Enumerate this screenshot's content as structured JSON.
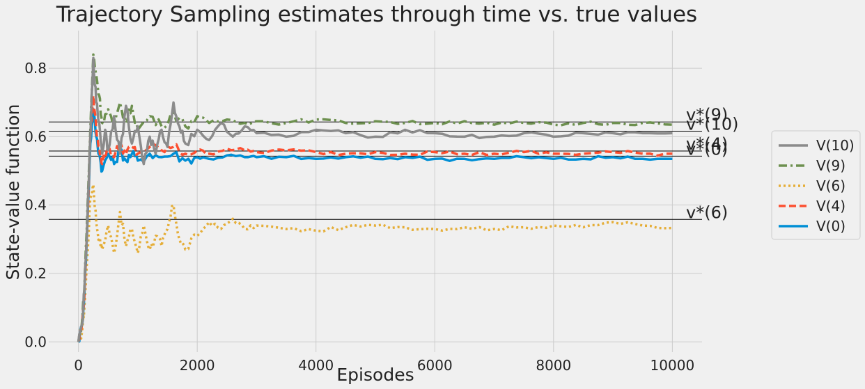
{
  "chart_data": {
    "type": "line",
    "title": "Trajectory Sampling estimates through time vs. true values",
    "xlabel": "Episodes",
    "ylabel": "State-value function",
    "xlim": [
      -500,
      10500
    ],
    "ylim": [
      -0.03,
      0.91
    ],
    "xticks": [
      0,
      2000,
      4000,
      6000,
      8000,
      10000
    ],
    "yticks": [
      0.0,
      0.2,
      0.4,
      0.6,
      0.8
    ],
    "grid": true,
    "legend_position": "right",
    "true_values": [
      {
        "label": "v*(9)",
        "value": 0.643
      },
      {
        "label": "v*(10)",
        "value": 0.616
      },
      {
        "label": "v*(4)",
        "value": 0.558
      },
      {
        "label": "v*(0)",
        "value": 0.543
      },
      {
        "label": "v*(6)",
        "value": 0.358
      }
    ],
    "series": [
      {
        "name": "V(10)",
        "color": "#8b8b8b",
        "dash": "solid",
        "final": 0.61,
        "points": [
          [
            0,
            0
          ],
          [
            60,
            0.05
          ],
          [
            100,
            0.15
          ],
          [
            150,
            0.35
          ],
          [
            200,
            0.6
          ],
          [
            250,
            0.83
          ],
          [
            300,
            0.7
          ],
          [
            350,
            0.64
          ],
          [
            400,
            0.55
          ],
          [
            450,
            0.62
          ],
          [
            500,
            0.56
          ],
          [
            600,
            0.66
          ],
          [
            700,
            0.55
          ],
          [
            800,
            0.69
          ],
          [
            900,
            0.58
          ],
          [
            1000,
            0.63
          ],
          [
            1100,
            0.52
          ],
          [
            1200,
            0.6
          ],
          [
            1300,
            0.55
          ],
          [
            1400,
            0.62
          ],
          [
            1500,
            0.57
          ],
          [
            1600,
            0.7
          ],
          [
            1700,
            0.63
          ],
          [
            1800,
            0.58
          ],
          [
            2000,
            0.62
          ],
          [
            2200,
            0.59
          ],
          [
            2400,
            0.64
          ],
          [
            2600,
            0.6
          ],
          [
            2800,
            0.63
          ],
          [
            3000,
            0.61
          ],
          [
            3500,
            0.6
          ],
          [
            4000,
            0.62
          ],
          [
            4500,
            0.61
          ],
          [
            5000,
            0.6
          ],
          [
            5500,
            0.62
          ],
          [
            6000,
            0.61
          ],
          [
            6500,
            0.6
          ],
          [
            7000,
            0.6
          ],
          [
            7500,
            0.61
          ],
          [
            8000,
            0.6
          ],
          [
            8500,
            0.61
          ],
          [
            9000,
            0.61
          ],
          [
            9500,
            0.61
          ],
          [
            10000,
            0.61
          ]
        ]
      },
      {
        "name": "V(9)",
        "color": "#6d904f",
        "dash": "dashdot",
        "final": 0.635,
        "points": [
          [
            0,
            0
          ],
          [
            60,
            0.06
          ],
          [
            100,
            0.16
          ],
          [
            150,
            0.38
          ],
          [
            200,
            0.62
          ],
          [
            250,
            0.84
          ],
          [
            300,
            0.78
          ],
          [
            350,
            0.72
          ],
          [
            400,
            0.64
          ],
          [
            500,
            0.68
          ],
          [
            600,
            0.62
          ],
          [
            700,
            0.7
          ],
          [
            800,
            0.64
          ],
          [
            900,
            0.69
          ],
          [
            1000,
            0.62
          ],
          [
            1200,
            0.66
          ],
          [
            1400,
            0.63
          ],
          [
            1600,
            0.67
          ],
          [
            1800,
            0.63
          ],
          [
            2000,
            0.66
          ],
          [
            2200,
            0.64
          ],
          [
            2500,
            0.65
          ],
          [
            2800,
            0.64
          ],
          [
            3000,
            0.645
          ],
          [
            3500,
            0.64
          ],
          [
            4000,
            0.65
          ],
          [
            4500,
            0.64
          ],
          [
            5000,
            0.645
          ],
          [
            5500,
            0.64
          ],
          [
            6000,
            0.64
          ],
          [
            6500,
            0.645
          ],
          [
            7000,
            0.635
          ],
          [
            7500,
            0.64
          ],
          [
            8000,
            0.635
          ],
          [
            8500,
            0.64
          ],
          [
            9000,
            0.64
          ],
          [
            9500,
            0.64
          ],
          [
            10000,
            0.635
          ]
        ]
      },
      {
        "name": "V(6)",
        "color": "#e5ae38",
        "dash": "dotted",
        "final": 0.333,
        "points": [
          [
            0,
            0
          ],
          [
            60,
            0.03
          ],
          [
            100,
            0.1
          ],
          [
            150,
            0.25
          ],
          [
            200,
            0.42
          ],
          [
            250,
            0.46
          ],
          [
            300,
            0.35
          ],
          [
            350,
            0.3
          ],
          [
            400,
            0.27
          ],
          [
            500,
            0.34
          ],
          [
            600,
            0.26
          ],
          [
            700,
            0.38
          ],
          [
            800,
            0.28
          ],
          [
            900,
            0.33
          ],
          [
            1000,
            0.26
          ],
          [
            1100,
            0.34
          ],
          [
            1200,
            0.27
          ],
          [
            1300,
            0.31
          ],
          [
            1400,
            0.28
          ],
          [
            1500,
            0.33
          ],
          [
            1600,
            0.4
          ],
          [
            1700,
            0.3
          ],
          [
            1800,
            0.27
          ],
          [
            2000,
            0.31
          ],
          [
            2200,
            0.35
          ],
          [
            2400,
            0.33
          ],
          [
            2600,
            0.36
          ],
          [
            2800,
            0.33
          ],
          [
            3000,
            0.34
          ],
          [
            3500,
            0.33
          ],
          [
            4000,
            0.325
          ],
          [
            4500,
            0.335
          ],
          [
            5000,
            0.34
          ],
          [
            5500,
            0.335
          ],
          [
            6000,
            0.33
          ],
          [
            6500,
            0.335
          ],
          [
            7000,
            0.33
          ],
          [
            7500,
            0.335
          ],
          [
            8000,
            0.34
          ],
          [
            8500,
            0.335
          ],
          [
            9000,
            0.35
          ],
          [
            9500,
            0.34
          ],
          [
            10000,
            0.333
          ]
        ]
      },
      {
        "name": "V(4)",
        "color": "#fc4f30",
        "dash": "dashed",
        "final": 0.55,
        "points": [
          [
            0,
            0
          ],
          [
            60,
            0.05
          ],
          [
            100,
            0.14
          ],
          [
            150,
            0.35
          ],
          [
            200,
            0.6
          ],
          [
            250,
            0.72
          ],
          [
            300,
            0.62
          ],
          [
            350,
            0.57
          ],
          [
            400,
            0.52
          ],
          [
            500,
            0.57
          ],
          [
            600,
            0.54
          ],
          [
            700,
            0.58
          ],
          [
            800,
            0.55
          ],
          [
            900,
            0.57
          ],
          [
            1000,
            0.55
          ],
          [
            1200,
            0.57
          ],
          [
            1400,
            0.56
          ],
          [
            1600,
            0.57
          ],
          [
            1800,
            0.55
          ],
          [
            2000,
            0.56
          ],
          [
            2200,
            0.55
          ],
          [
            2500,
            0.565
          ],
          [
            2800,
            0.56
          ],
          [
            3000,
            0.555
          ],
          [
            3500,
            0.56
          ],
          [
            4000,
            0.555
          ],
          [
            4500,
            0.55
          ],
          [
            5000,
            0.555
          ],
          [
            5500,
            0.55
          ],
          [
            6000,
            0.555
          ],
          [
            6500,
            0.55
          ],
          [
            7000,
            0.55
          ],
          [
            7500,
            0.555
          ],
          [
            8000,
            0.55
          ],
          [
            8500,
            0.55
          ],
          [
            9000,
            0.555
          ],
          [
            9500,
            0.55
          ],
          [
            10000,
            0.55
          ]
        ]
      },
      {
        "name": "V(0)",
        "color": "#008fd5",
        "dash": "solid",
        "final": 0.535,
        "points": [
          [
            0,
            0
          ],
          [
            60,
            0.05
          ],
          [
            100,
            0.14
          ],
          [
            150,
            0.34
          ],
          [
            200,
            0.58
          ],
          [
            250,
            0.68
          ],
          [
            300,
            0.6
          ],
          [
            350,
            0.55
          ],
          [
            400,
            0.5
          ],
          [
            500,
            0.55
          ],
          [
            600,
            0.52
          ],
          [
            700,
            0.56
          ],
          [
            800,
            0.53
          ],
          [
            900,
            0.55
          ],
          [
            1000,
            0.53
          ],
          [
            1200,
            0.55
          ],
          [
            1400,
            0.54
          ],
          [
            1600,
            0.55
          ],
          [
            1800,
            0.53
          ],
          [
            2000,
            0.54
          ],
          [
            2200,
            0.535
          ],
          [
            2500,
            0.545
          ],
          [
            2800,
            0.54
          ],
          [
            3000,
            0.54
          ],
          [
            3500,
            0.54
          ],
          [
            4000,
            0.535
          ],
          [
            4500,
            0.54
          ],
          [
            5000,
            0.535
          ],
          [
            5500,
            0.54
          ],
          [
            6000,
            0.535
          ],
          [
            6500,
            0.535
          ],
          [
            7000,
            0.535
          ],
          [
            7500,
            0.54
          ],
          [
            8000,
            0.535
          ],
          [
            8500,
            0.535
          ],
          [
            9000,
            0.54
          ],
          [
            9500,
            0.535
          ],
          [
            10000,
            0.535
          ]
        ]
      }
    ]
  }
}
